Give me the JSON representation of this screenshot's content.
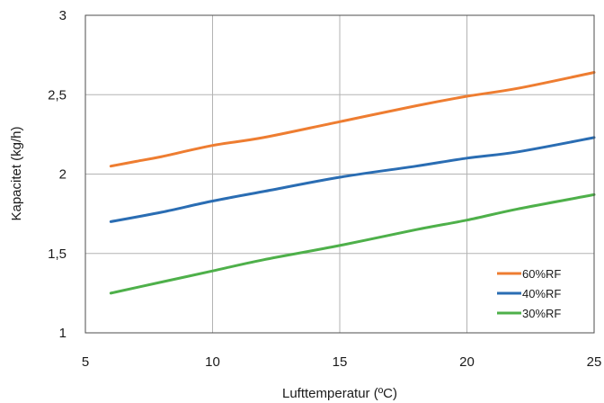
{
  "chart_data": {
    "type": "line",
    "xlabel": "Lufttemperatur (ºC)",
    "ylabel": "Kapacitet (kg/h)",
    "xlim": [
      5,
      25
    ],
    "ylim": [
      1,
      3
    ],
    "x_ticks": [
      5,
      10,
      15,
      20,
      25
    ],
    "x_tick_labels": [
      "5",
      "10",
      "15",
      "20",
      "25"
    ],
    "y_ticks": [
      1,
      1.5,
      2,
      2.5,
      3
    ],
    "y_tick_labels": [
      "1",
      "1,5",
      "2",
      "2,5",
      "3"
    ],
    "grid": true,
    "legend_position": "bottom-right",
    "series": [
      {
        "name": "60%RF",
        "color": "#ee7d31",
        "x": [
          6,
          7,
          8,
          10,
          12,
          15,
          18,
          20,
          22,
          25
        ],
        "y": [
          2.05,
          2.08,
          2.11,
          2.18,
          2.23,
          2.33,
          2.43,
          2.49,
          2.54,
          2.64
        ]
      },
      {
        "name": "40%RF",
        "color": "#2a6db3",
        "x": [
          6,
          8,
          10,
          12,
          15,
          18,
          20,
          22,
          25
        ],
        "y": [
          1.7,
          1.76,
          1.83,
          1.89,
          1.98,
          2.05,
          2.1,
          2.14,
          2.23
        ]
      },
      {
        "name": "30%RF",
        "color": "#4eb04a",
        "x": [
          6,
          8,
          10,
          12,
          15,
          18,
          20,
          22,
          25
        ],
        "y": [
          1.25,
          1.32,
          1.39,
          1.46,
          1.55,
          1.65,
          1.71,
          1.78,
          1.87
        ]
      }
    ]
  }
}
